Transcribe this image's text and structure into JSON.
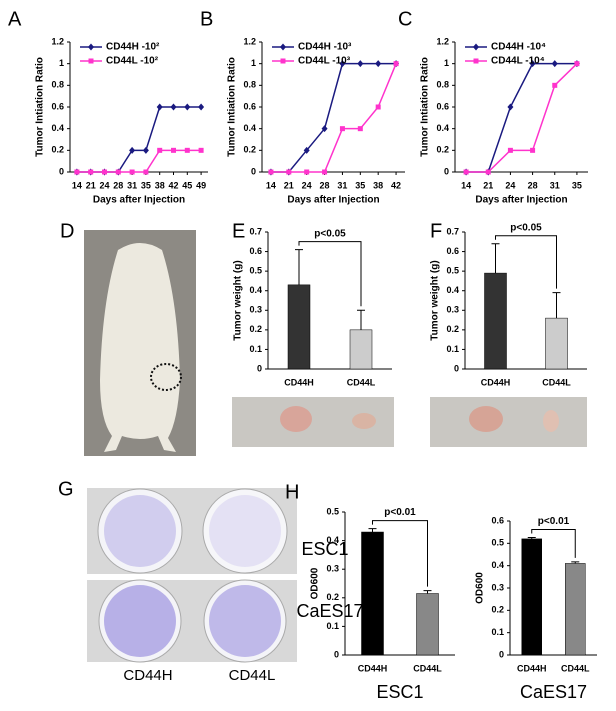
{
  "chart_data": [
    {
      "type": "line",
      "panel": "A",
      "y_label": "Tumor Intiation Ratio",
      "x_label": "Days after Injection",
      "categories": [
        14,
        21,
        24,
        28,
        31,
        35,
        38,
        42,
        45,
        49
      ],
      "series": [
        {
          "name": "CD44H -10²",
          "color": "#1a1a80",
          "values": [
            0,
            0,
            0,
            0,
            0.2,
            0.2,
            0.6,
            0.6,
            0.6,
            0.6
          ]
        },
        {
          "name": "CD44L -10²",
          "color": "#ff33cc",
          "values": [
            0,
            0,
            0,
            0,
            0,
            0,
            0.2,
            0.2,
            0.2,
            0.2
          ]
        }
      ],
      "ylim": [
        0,
        1.2
      ],
      "yticks": [
        0,
        0.2,
        0.4,
        0.6,
        0.8,
        1,
        1.2
      ],
      "legend": "upper left"
    },
    {
      "type": "line",
      "panel": "B",
      "y_label": "Tumor Intiation Ratio",
      "x_label": "Days after Injection",
      "categories": [
        14,
        21,
        24,
        28,
        31,
        35,
        38,
        42
      ],
      "series": [
        {
          "name": "CD44H -10³",
          "color": "#1a1a80",
          "values": [
            0,
            0,
            0.2,
            0.4,
            1,
            1,
            1,
            1
          ]
        },
        {
          "name": "CD44L -10³",
          "color": "#ff33cc",
          "values": [
            0,
            0,
            0,
            0,
            0.4,
            0.4,
            0.6,
            1
          ]
        }
      ],
      "ylim": [
        0,
        1.2
      ],
      "yticks": [
        0,
        0.2,
        0.4,
        0.6,
        0.8,
        1,
        1.2
      ],
      "legend": "upper left"
    },
    {
      "type": "line",
      "panel": "C",
      "y_label": "Tumor Intiation Ratio",
      "x_label": "Days after Injection",
      "categories": [
        14,
        21,
        24,
        28,
        31,
        35
      ],
      "series": [
        {
          "name": "CD44H -10⁴",
          "color": "#1a1a80",
          "values": [
            0,
            0,
            0.6,
            1,
            1,
            1
          ]
        },
        {
          "name": "CD44L -10⁴",
          "color": "#ff33cc",
          "values": [
            0,
            0,
            0.2,
            0.2,
            0.8,
            1
          ]
        }
      ],
      "ylim": [
        0,
        1.2
      ],
      "yticks": [
        0,
        0.2,
        0.4,
        0.6,
        0.8,
        1,
        1.2
      ],
      "legend": "upper left"
    },
    {
      "type": "bar",
      "panel": "E",
      "y_label": "Tumor weight (g)",
      "categories": [
        "CD44H",
        "CD44L"
      ],
      "values": [
        0.43,
        0.2
      ],
      "errors": [
        0.18,
        0.1
      ],
      "colors": [
        "#333333",
        "#cccccc"
      ],
      "ylim": [
        0,
        0.7
      ],
      "yticks": [
        0,
        0.1,
        0.2,
        0.3,
        0.4,
        0.5,
        0.6,
        0.7
      ],
      "annotation": "p<0.05"
    },
    {
      "type": "bar",
      "panel": "F",
      "y_label": "Tumor weight (g)",
      "categories": [
        "CD44H",
        "CD44L"
      ],
      "values": [
        0.49,
        0.26
      ],
      "errors": [
        0.15,
        0.13
      ],
      "colors": [
        "#333333",
        "#cccccc"
      ],
      "ylim": [
        0,
        0.7
      ],
      "yticks": [
        0,
        0.1,
        0.2,
        0.3,
        0.4,
        0.5,
        0.6,
        0.7
      ],
      "annotation": "p<0.05"
    },
    {
      "type": "bar",
      "panel": "H",
      "y_label": "OD600",
      "x_label": "ESC1",
      "categories": [
        "CD44H",
        "CD44L"
      ],
      "values": [
        0.43,
        0.215
      ],
      "errors": [
        0.012,
        0.01
      ],
      "colors": [
        "#000000",
        "#888888"
      ],
      "ylim": [
        0,
        0.5
      ],
      "yticks": [
        0,
        0.1,
        0.2,
        0.3,
        0.4,
        0.5
      ],
      "annotation": "p<0.01"
    },
    {
      "type": "bar",
      "y_label": "OD600",
      "x_label": "CaES17",
      "categories": [
        "CD44H",
        "CD44L"
      ],
      "values": [
        0.52,
        0.41
      ],
      "errors": [
        0.006,
        0.007
      ],
      "colors": [
        "#000000",
        "#888888"
      ],
      "ylim": [
        0,
        0.6
      ],
      "yticks": [
        0,
        0.1,
        0.2,
        0.3,
        0.4,
        0.5,
        0.6
      ],
      "annotation": "p<0.01"
    }
  ],
  "images": [
    {
      "panel": "D"
    },
    {
      "panel": "G",
      "row_labels": [
        "ESC1",
        "CaES17"
      ],
      "column_labels": [
        "CD44H",
        "CD44L"
      ]
    }
  ]
}
